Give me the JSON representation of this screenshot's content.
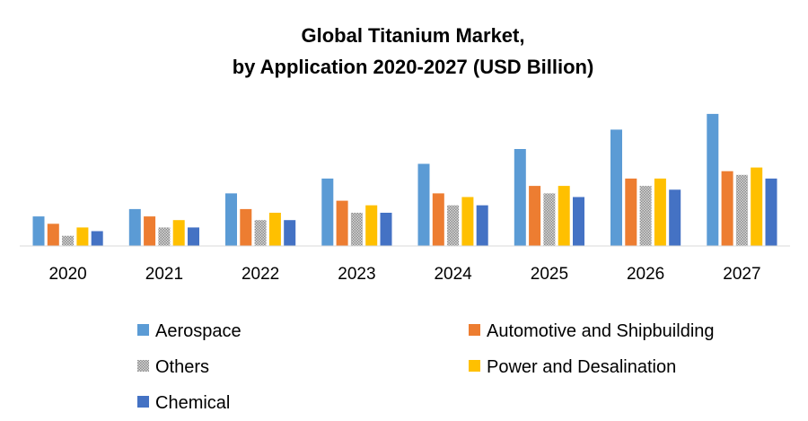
{
  "chart_data": {
    "type": "bar",
    "title_lines": [
      "Global Titanium Market,",
      "by Application 2020-2027 (USD Billion)"
    ],
    "xlabel": "",
    "ylabel": "",
    "ylim": [
      0,
      140
    ],
    "grid": false,
    "legend_position": "bottom",
    "categories": [
      "2020",
      "2021",
      "2022",
      "2023",
      "2024",
      "2025",
      "2026",
      "2027"
    ],
    "series": [
      {
        "name": "Aerospace",
        "color": "#5B9BD5",
        "pattern": "solid",
        "values": [
          32,
          40,
          57,
          73,
          89,
          105,
          126,
          143
        ]
      },
      {
        "name": "Automotive and Shipbuilding",
        "color": "#ED7D31",
        "pattern": "solid",
        "values": [
          24,
          32,
          40,
          49,
          57,
          65,
          73,
          81
        ]
      },
      {
        "name": "Others",
        "color": "#A5A5A5",
        "pattern": "dotted",
        "values": [
          11,
          20,
          28,
          36,
          44,
          57,
          65,
          77
        ]
      },
      {
        "name": "Power and Desalination",
        "color": "#FFC000",
        "pattern": "solid",
        "values": [
          20,
          28,
          36,
          44,
          53,
          65,
          73,
          85
        ]
      },
      {
        "name": "Chemical",
        "color": "#4472C4",
        "pattern": "solid",
        "values": [
          16,
          20,
          28,
          36,
          44,
          53,
          61,
          73
        ]
      }
    ]
  }
}
